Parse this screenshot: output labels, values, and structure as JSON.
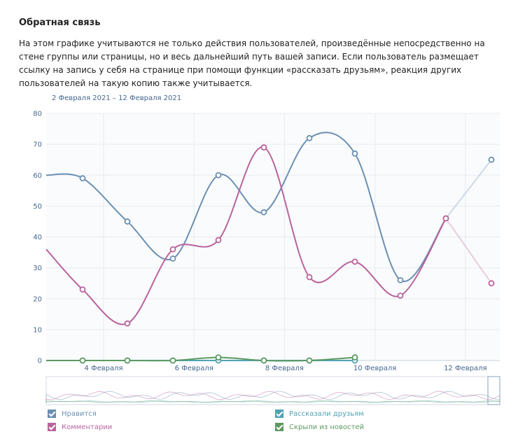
{
  "header": {
    "title": "Обратная связь",
    "description": "На этом графике учитываются не только действия пользователей, произведённые непосредственно на стене группы или страницы, но и весь дальнейший путь вашей записи. Если пользователь размещает ссылку на запись у себя на странице при помощи функции «рассказать друзьям», реакция других пользователей на такую копию также учитывается.",
    "period": "2 Февраля 2021 – 12 Февраля 2021"
  },
  "chart_data": {
    "type": "line",
    "ylim": [
      0,
      80
    ],
    "yticks": [
      0,
      10,
      20,
      30,
      40,
      50,
      60,
      70,
      80
    ],
    "xticks": [
      {
        "label": "4 Февраля",
        "x": 4
      },
      {
        "label": "6 Февраля",
        "x": 6
      },
      {
        "label": "8 Февраля",
        "x": 8
      },
      {
        "label": "10 Февраля",
        "x": 10
      },
      {
        "label": "12 Февраля",
        "x": 12
      }
    ],
    "xlim": [
      2.2,
      12.6
    ],
    "grid": true,
    "legend_position": "bottom",
    "series": [
      {
        "name": "Нравится",
        "color": "#6b8fb3",
        "x": [
          2.2,
          3,
          4,
          5,
          6,
          7,
          8,
          9,
          10,
          11,
          12,
          13
        ],
        "values": [
          60,
          59,
          45,
          33,
          60,
          48,
          72,
          67,
          26,
          46,
          65,
          null
        ]
      },
      {
        "name": "Комментарии",
        "color": "#b9649e",
        "x": [
          2.2,
          3,
          4,
          5,
          6,
          7,
          8,
          9,
          10,
          11,
          12,
          13
        ],
        "values": [
          36,
          23,
          12,
          36,
          39,
          69,
          27,
          32,
          21,
          46,
          25,
          null
        ]
      },
      {
        "name": "Рассказали друзьям",
        "color": "#4fa3b4",
        "x": [
          2.2,
          3,
          4,
          5,
          6,
          7,
          8,
          9
        ],
        "values": [
          0,
          0,
          0,
          0,
          0,
          0,
          0,
          0
        ]
      },
      {
        "name": "Скрыли из новостей",
        "color": "#5c9a62",
        "x": [
          2.2,
          3,
          4,
          5,
          6,
          7,
          8,
          9
        ],
        "values": [
          0,
          0,
          0,
          0,
          1,
          0,
          0,
          1
        ]
      }
    ]
  },
  "legend": {
    "likes": {
      "label": "Нравится",
      "color": "#6b8fb3"
    },
    "comments": {
      "label": "Комментарии",
      "color": "#b9649e"
    },
    "shares": {
      "label": "Рассказали друзьям",
      "color": "#4fa3b4"
    },
    "hidden": {
      "label": "Скрыли из новостей",
      "color": "#5c9a62"
    }
  }
}
